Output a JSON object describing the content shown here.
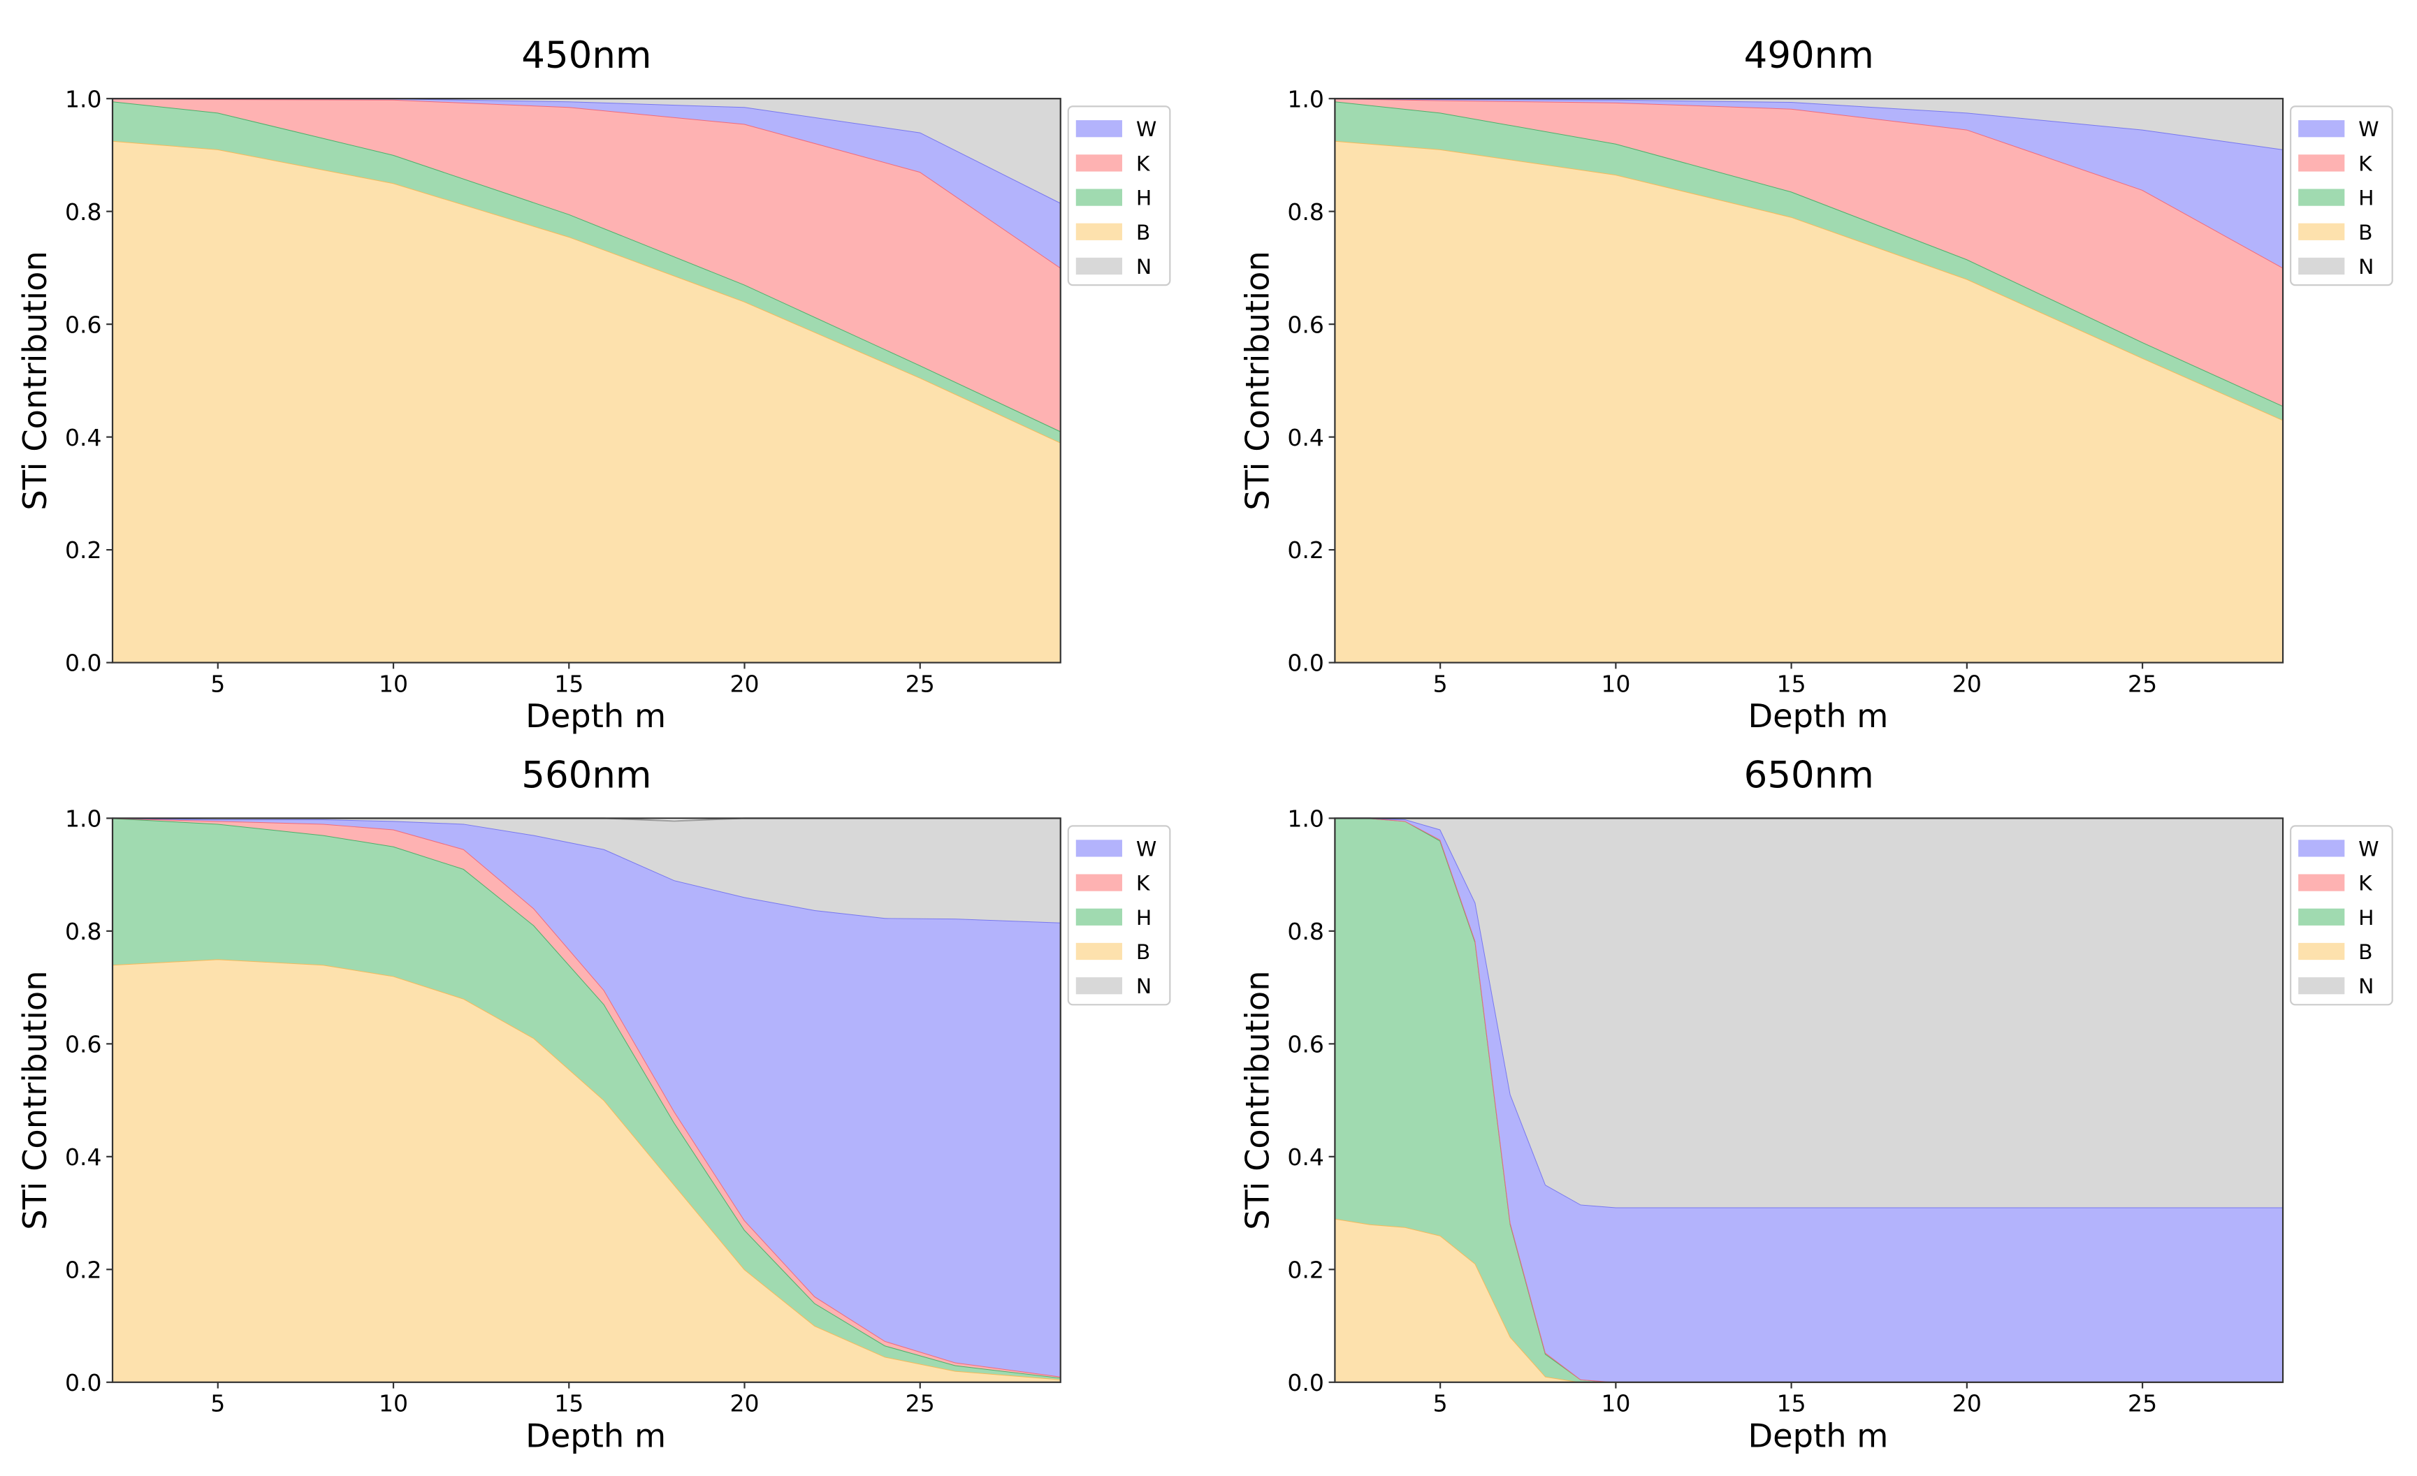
{
  "figure": {
    "background": "#ffffff"
  },
  "legend_labels": [
    "W",
    "K",
    "H",
    "B",
    "N"
  ],
  "stack_order": [
    "B",
    "H",
    "K",
    "W",
    "N"
  ],
  "colors": {
    "B": "#fde1ad",
    "B_edge": "#f5b95a",
    "H": "#a0dab0",
    "H_edge": "#4caf6a",
    "K": "#feb2b2",
    "K_edge": "#f06a7a",
    "W": "#b3b3fc",
    "W_edge": "#7777ee",
    "N": "#d8d8d8",
    "N_edge": "#9a9a9a"
  },
  "chart_data": [
    {
      "type": "area",
      "stacked": true,
      "title": "450nm",
      "xlabel": "Depth m",
      "ylabel": "STi Contribution",
      "xlim": [
        2,
        29
      ],
      "ylim": [
        0,
        1.0
      ],
      "xticks": [
        5,
        10,
        15,
        20,
        25
      ],
      "yticks": [
        "0.0",
        "0.2",
        "0.4",
        "0.6",
        "0.8",
        "1.0"
      ],
      "legend_position": "upper right, outside",
      "x": [
        2,
        5,
        10,
        15,
        20,
        25,
        29
      ],
      "series": [
        {
          "name": "B",
          "values": [
            0.925,
            0.91,
            0.85,
            0.755,
            0.64,
            0.505,
            0.39
          ]
        },
        {
          "name": "H",
          "values": [
            0.07,
            0.065,
            0.05,
            0.04,
            0.03,
            0.022,
            0.02
          ]
        },
        {
          "name": "K",
          "values": [
            0.005,
            0.024,
            0.098,
            0.19,
            0.285,
            0.343,
            0.29
          ]
        },
        {
          "name": "W",
          "values": [
            0.0,
            0.001,
            0.002,
            0.01,
            0.03,
            0.07,
            0.115
          ]
        },
        {
          "name": "N",
          "values": [
            0.0,
            0.0,
            0.0,
            0.005,
            0.015,
            0.06,
            0.185
          ]
        }
      ]
    },
    {
      "type": "area",
      "stacked": true,
      "title": "490nm",
      "xlabel": "Depth m",
      "ylabel": "STi Contribution",
      "xlim": [
        2,
        29
      ],
      "ylim": [
        0,
        1.0
      ],
      "xticks": [
        5,
        10,
        15,
        20,
        25
      ],
      "yticks": [
        "0.0",
        "0.2",
        "0.4",
        "0.6",
        "0.8",
        "1.0"
      ],
      "legend_position": "upper right, outside",
      "x": [
        2,
        5,
        10,
        15,
        20,
        25,
        29
      ],
      "series": [
        {
          "name": "B",
          "values": [
            0.925,
            0.91,
            0.865,
            0.79,
            0.68,
            0.54,
            0.43
          ]
        },
        {
          "name": "H",
          "values": [
            0.07,
            0.065,
            0.055,
            0.045,
            0.035,
            0.028,
            0.025
          ]
        },
        {
          "name": "K",
          "values": [
            0.005,
            0.022,
            0.073,
            0.147,
            0.23,
            0.27,
            0.245
          ]
        },
        {
          "name": "W",
          "values": [
            0.0,
            0.002,
            0.005,
            0.012,
            0.03,
            0.107,
            0.21
          ]
        },
        {
          "name": "N",
          "values": [
            0.0,
            0.001,
            0.002,
            0.006,
            0.025,
            0.055,
            0.09
          ]
        }
      ]
    },
    {
      "type": "area",
      "stacked": true,
      "title": "560nm",
      "xlabel": "Depth m",
      "ylabel": "STi Contribution",
      "xlim": [
        2,
        29
      ],
      "ylim": [
        0,
        1.0
      ],
      "xticks": [
        5,
        10,
        15,
        20,
        25
      ],
      "yticks": [
        "0.0",
        "0.2",
        "0.4",
        "0.6",
        "0.8",
        "1.0"
      ],
      "legend_position": "upper right, outside",
      "x": [
        2,
        5,
        8,
        10,
        12,
        14,
        16,
        18,
        20,
        22,
        24,
        26,
        29
      ],
      "series": [
        {
          "name": "B",
          "values": [
            0.74,
            0.75,
            0.74,
            0.72,
            0.68,
            0.61,
            0.5,
            0.35,
            0.2,
            0.1,
            0.045,
            0.02,
            0.005
          ]
        },
        {
          "name": "H",
          "values": [
            0.26,
            0.24,
            0.23,
            0.23,
            0.23,
            0.2,
            0.17,
            0.11,
            0.07,
            0.04,
            0.02,
            0.01,
            0.003
          ]
        },
        {
          "name": "K",
          "values": [
            0.0,
            0.005,
            0.02,
            0.03,
            0.035,
            0.03,
            0.025,
            0.02,
            0.017,
            0.012,
            0.008,
            0.005,
            0.002
          ]
        },
        {
          "name": "W",
          "values": [
            0.0,
            0.003,
            0.008,
            0.015,
            0.045,
            0.13,
            0.25,
            0.41,
            0.573,
            0.685,
            0.75,
            0.787,
            0.805
          ]
        },
        {
          "name": "N",
          "values": [
            0.0,
            0.002,
            0.002,
            0.005,
            0.01,
            0.03,
            0.055,
            0.105,
            0.14,
            0.163,
            0.177,
            0.178,
            0.185
          ]
        }
      ]
    },
    {
      "type": "area",
      "stacked": true,
      "title": "650nm",
      "xlabel": "Depth m",
      "ylabel": "STi Contribution",
      "xlim": [
        2,
        29
      ],
      "ylim": [
        0,
        1.0
      ],
      "xticks": [
        5,
        10,
        15,
        20,
        25
      ],
      "yticks": [
        "0.0",
        "0.2",
        "0.4",
        "0.6",
        "0.8",
        "1.0"
      ],
      "legend_position": "upper right, outside",
      "x": [
        2,
        3,
        4,
        5,
        6,
        7,
        8,
        9,
        10,
        12,
        15,
        20,
        25,
        29
      ],
      "series": [
        {
          "name": "B",
          "values": [
            0.29,
            0.28,
            0.275,
            0.26,
            0.21,
            0.08,
            0.01,
            0.0,
            0.0,
            0.0,
            0.0,
            0.0,
            0.0,
            0.0
          ]
        },
        {
          "name": "H",
          "values": [
            0.71,
            0.72,
            0.72,
            0.7,
            0.57,
            0.2,
            0.04,
            0.005,
            0.0,
            0.0,
            0.0,
            0.0,
            0.0,
            0.0
          ]
        },
        {
          "name": "K",
          "values": [
            0.0,
            0.0,
            0.0,
            0.002,
            0.002,
            0.002,
            0.002,
            0.0,
            0.0,
            0.0,
            0.0,
            0.0,
            0.0,
            0.0
          ]
        },
        {
          "name": "W",
          "values": [
            0.0,
            0.0,
            0.003,
            0.018,
            0.068,
            0.228,
            0.298,
            0.31,
            0.31,
            0.31,
            0.31,
            0.31,
            0.31,
            0.31
          ]
        },
        {
          "name": "N",
          "values": [
            0.0,
            0.0,
            0.002,
            0.02,
            0.15,
            0.49,
            0.65,
            0.685,
            0.69,
            0.69,
            0.69,
            0.69,
            0.69,
            0.69
          ]
        }
      ]
    }
  ]
}
